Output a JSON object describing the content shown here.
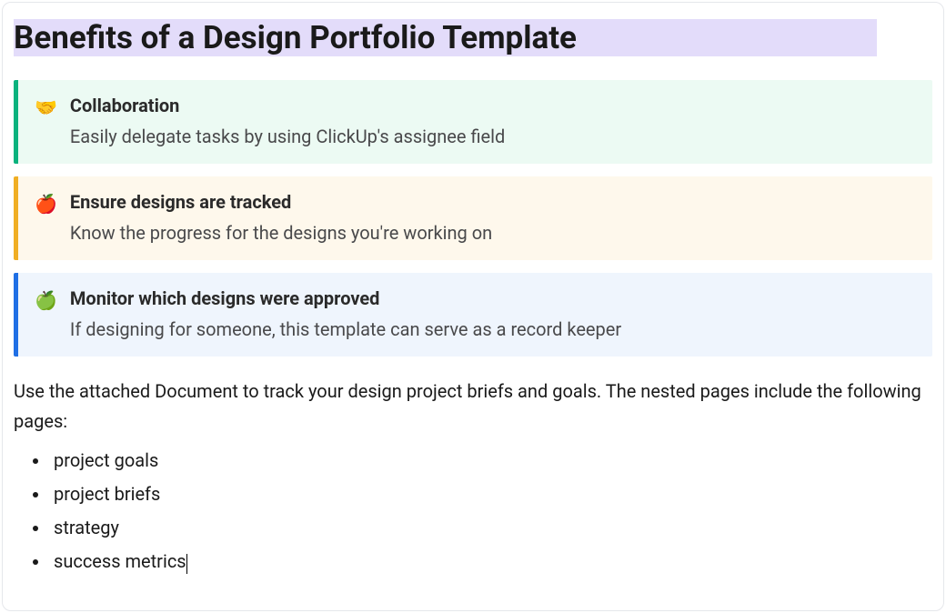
{
  "heading": "Benefits of a Design Portfolio Template",
  "heading_highlight_color": "#e3dcfa",
  "callouts": [
    {
      "icon": "🤝",
      "title": "Collaboration",
      "body": "Easily delegate tasks by using ClickUp's assignee field",
      "border_color": "#0ab27d",
      "bg_color": "#ecfaf3"
    },
    {
      "icon": "🍎",
      "title": "Ensure designs are tracked",
      "body": "Know the progress for the designs you're working on",
      "border_color": "#f0ae24",
      "bg_color": "#fef8ec"
    },
    {
      "icon": "🍏",
      "title": "Monitor which designs were approved",
      "body": "If designing for someone, this template can serve as a record keeper",
      "border_color": "#1f6fe5",
      "bg_color": "#eff5fd"
    }
  ],
  "paragraph": "Use the attached Document to track your design project briefs and goals. The nested pages include the following pages:",
  "bullets": [
    "project goals",
    "project briefs",
    "strategy",
    "success metrics"
  ]
}
